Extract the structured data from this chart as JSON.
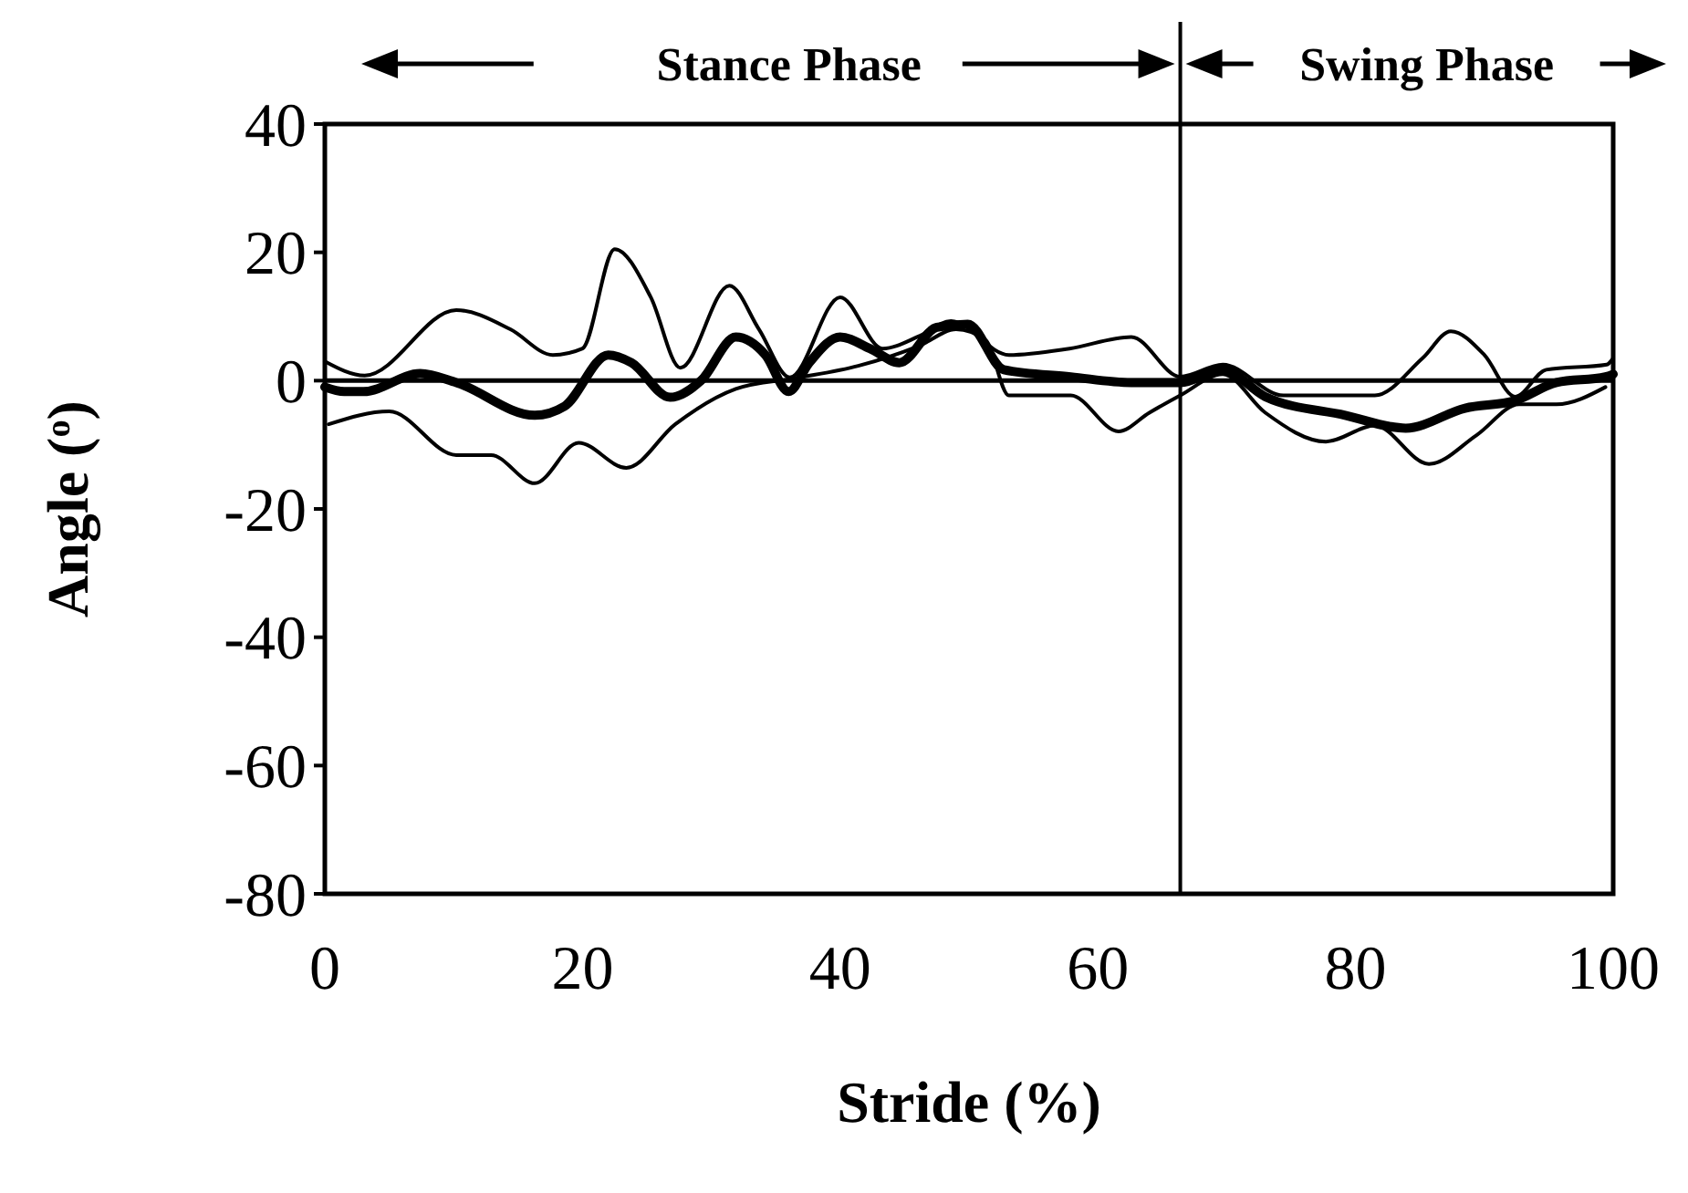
{
  "chart_data": {
    "type": "line",
    "xlabel": "Stride (%)",
    "ylabel": "Angle ($^{o}$)",
    "xlim": [
      0,
      100
    ],
    "xticks": [
      0,
      20,
      40,
      60,
      80,
      100
    ],
    "ylim": [
      -80,
      40
    ],
    "yticks": [
      -80,
      -60,
      -40,
      -20,
      0,
      20,
      40
    ],
    "grid": false,
    "line_style": "solid",
    "annotations": [
      "Stance Phase",
      "Swing Phase"
    ],
    "ref_lines": [
      {
        "axis": "x",
        "value": 66.4,
        "color": "#000000"
      },
      {
        "axis": "y",
        "value": 0,
        "color": "#000000"
      }
    ],
    "series": [
      {
        "color": "#000000",
        "x": [
          0,
          1.5,
          3,
          7.4,
          10.2,
          16.3,
          18.6,
          22,
          23.8,
          26.8,
          29.2,
          31.9,
          34.2,
          36,
          37.6,
          40,
          42.3,
          44.6,
          47.5,
          49.9,
          52.7,
          57.9,
          62.6,
          66.4,
          69.7,
          73,
          79.2,
          83.9,
          88.5,
          92.4,
          95.6,
          99.4,
          100
        ],
        "values": [
          -1,
          -1.7,
          -1.7,
          1.1,
          -0.3,
          -5.4,
          -4,
          4,
          2.8,
          -2.6,
          0,
          6.8,
          4,
          -1.7,
          2.8,
          6.8,
          5,
          2.8,
          8.3,
          8.8,
          1.7,
          0.6,
          -0.3,
          -0.3,
          1.7,
          -2.5,
          -5.4,
          -7.4,
          -4.3,
          -3.1,
          -0.3,
          0.6,
          1
        ]
      },
      {
        "color": "#000000",
        "x": [
          0,
          3.1,
          10.2,
          14.4,
          17.7,
          20,
          22.5,
          25.3,
          27.6,
          31.4,
          33.7,
          36.1,
          40,
          43.3,
          46.2,
          48.6,
          53.1,
          57.8,
          62.6,
          66.4,
          69.7,
          74.4,
          81.5,
          85.2,
          87.4,
          90,
          92.4,
          94.8,
          99.5,
          100
        ],
        "values": [
          3,
          0.8,
          11,
          8,
          4,
          5,
          20.5,
          13,
          2,
          14.8,
          8,
          0.5,
          13,
          5,
          7,
          9.3,
          4,
          5,
          6.8,
          0.6,
          2.5,
          -2.3,
          -2.3,
          3.5,
          7.7,
          4,
          -2.5,
          1.7,
          2.5,
          3.5
        ]
      },
      {
        "color": "#000000",
        "x": [
          0.3,
          5,
          10.2,
          12.9,
          16.3,
          19.7,
          23.4,
          27.2,
          31.9,
          36.6,
          41.4,
          46.1,
          49,
          51.3,
          53.1,
          57.9,
          61.6,
          64,
          66.4,
          69.7,
          73,
          77.7,
          81.5,
          85.7,
          89.4,
          92.7,
          95.6,
          99.4
        ],
        "values": [
          -6.8,
          -4.8,
          -11.6,
          -11.6,
          -16,
          -9.7,
          -13.6,
          -6.8,
          -1.3,
          0.4,
          2.3,
          5.4,
          8,
          6.3,
          -2.3,
          -2.3,
          -7.9,
          -5,
          -2.3,
          1,
          -5,
          -9.5,
          -7,
          -13,
          -8.5,
          -3.7,
          -3.7,
          -1
        ]
      }
    ]
  }
}
